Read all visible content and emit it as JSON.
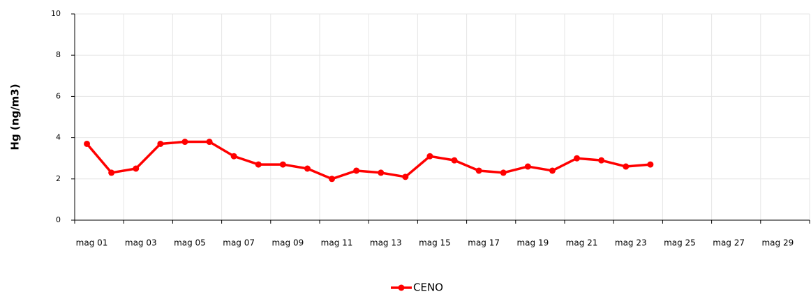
{
  "chart_data": {
    "type": "line",
    "y_label": "Hg (ng/m3)",
    "categories": [
      "mag 01",
      null,
      "mag 03",
      null,
      "mag 05",
      null,
      "mag 07",
      null,
      "mag 09",
      null,
      "mag 11",
      null,
      "mag 13",
      null,
      "mag 15",
      null,
      "mag 17",
      null,
      "mag 19",
      null,
      "mag 21",
      null,
      "mag 23",
      null,
      "mag 25",
      null,
      "mag 27",
      null,
      "mag 29",
      null
    ],
    "series": [
      {
        "name": "CENO",
        "color": "#ff0000",
        "values": [
          3.7,
          2.3,
          2.5,
          3.7,
          3.8,
          3.8,
          3.1,
          2.7,
          2.7,
          2.5,
          2.0,
          2.4,
          2.3,
          2.1,
          3.1,
          2.9,
          2.4,
          2.3,
          2.6,
          2.4,
          3.0,
          2.9,
          2.6,
          2.7,
          null,
          null,
          null,
          null,
          null,
          null
        ]
      }
    ],
    "ylim": [
      0,
      10
    ],
    "yticks": [
      0,
      2,
      4,
      6,
      8,
      10
    ],
    "grid": true,
    "legend": "bottom"
  }
}
